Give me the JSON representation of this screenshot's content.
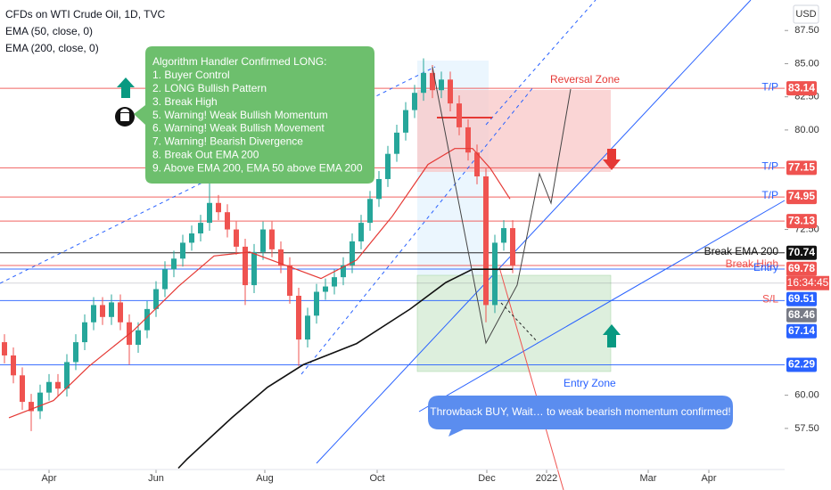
{
  "chart_data": {
    "type": "candlestick",
    "title": "CFDs on WTI Crude Oil, 1D, TVC",
    "indicators": [
      {
        "name": "EMA (50, close, 0)",
        "color": "#e53935",
        "x": [
          0.5,
          5.5,
          9.5,
          14.5,
          19.5,
          23.5,
          27.5,
          31.5,
          35.5,
          39.5,
          43.5,
          47.5,
          50.5,
          52.5,
          54.5,
          56.7
        ],
        "values": [
          58.3,
          59.6,
          62.2,
          64.9,
          68.2,
          70.5,
          70.8,
          69.8,
          68.8,
          70.2,
          73.5,
          77.4,
          78.6,
          78.6,
          77.1,
          74.8
        ]
      },
      {
        "name": "EMA (200, close, 0)",
        "color": "#111111",
        "x": [
          19.5,
          20.5,
          25.5,
          29.5,
          33.5,
          39.5,
          45.5,
          49.5,
          52.5,
          57
        ],
        "values": [
          54.5,
          55.2,
          58.3,
          60.6,
          62.3,
          63.9,
          66.5,
          68.5,
          69.5,
          69.5
        ]
      }
    ],
    "currency": "USD",
    "up_color": "#26a69a",
    "down_color": "#ef5350",
    "open": [
      64.0,
      63.0,
      61.5,
      59.5,
      58.8,
      60.2,
      61.0,
      60.5,
      62.5,
      64.0,
      65.5,
      66.8,
      65.9,
      67.0,
      65.5,
      63.8,
      64.9,
      66.5,
      68.0,
      69.5,
      70.3,
      71.5,
      72.2,
      73.0,
      74.5,
      73.8,
      72.5,
      71.2,
      68.3,
      70.8,
      72.5,
      71.0,
      69.8,
      67.5,
      64.2,
      66.0,
      67.8,
      68.2,
      68.9,
      69.8,
      71.6,
      73.0,
      74.8,
      76.3,
      78.2,
      79.8,
      81.5,
      82.8,
      84.3,
      83.0,
      83.8,
      82.0,
      80.2,
      78.3,
      76.5,
      66.8,
      71.5,
      72.6
    ],
    "high": [
      64.6,
      63.6,
      62.1,
      60.1,
      60.8,
      61.6,
      61.6,
      63.1,
      64.6,
      66.1,
      67.4,
      67.4,
      67.6,
      67.6,
      66.1,
      65.5,
      67.1,
      68.6,
      70.1,
      70.9,
      72.1,
      72.8,
      73.6,
      77.0,
      75.1,
      74.4,
      73.1,
      71.8,
      71.4,
      73.1,
      73.1,
      71.6,
      70.4,
      68.1,
      66.6,
      68.4,
      68.8,
      69.5,
      70.4,
      72.2,
      73.6,
      75.4,
      76.9,
      78.8,
      80.4,
      82.1,
      83.4,
      85.4,
      84.9,
      84.4,
      84.4,
      82.6,
      80.8,
      78.9,
      77.1,
      72.1,
      73.2,
      73.2
    ],
    "low": [
      62.4,
      60.9,
      58.9,
      57.3,
      58.2,
      59.6,
      59.9,
      59.9,
      61.9,
      63.4,
      64.9,
      65.3,
      65.3,
      64.9,
      62.3,
      63.2,
      64.3,
      65.9,
      67.4,
      68.9,
      69.7,
      70.9,
      71.6,
      72.4,
      73.2,
      71.9,
      70.6,
      66.8,
      67.7,
      70.2,
      70.4,
      69.2,
      66.9,
      62.2,
      63.6,
      65.4,
      67.2,
      67.6,
      68.3,
      69.2,
      71.0,
      72.4,
      74.2,
      75.7,
      77.6,
      79.2,
      80.9,
      82.2,
      82.4,
      82.4,
      81.4,
      79.6,
      77.7,
      75.9,
      65.5,
      66.2,
      70.9,
      69.2
    ],
    "close": [
      63.0,
      61.5,
      59.5,
      58.8,
      60.2,
      61.0,
      60.5,
      62.5,
      64.0,
      65.5,
      66.8,
      65.9,
      67.0,
      65.5,
      63.8,
      64.9,
      66.5,
      68.0,
      69.5,
      70.3,
      71.5,
      72.2,
      73.0,
      74.5,
      73.8,
      72.5,
      71.2,
      68.3,
      70.8,
      72.5,
      71.0,
      69.8,
      67.5,
      64.2,
      66.0,
      67.8,
      68.2,
      68.9,
      69.8,
      71.6,
      73.0,
      74.8,
      76.3,
      78.2,
      79.8,
      81.5,
      82.8,
      84.3,
      83.0,
      83.8,
      82.0,
      80.2,
      78.3,
      76.5,
      66.8,
      71.5,
      72.6,
      69.8
    ],
    "xlim": [
      -0.5,
      87.5
    ],
    "xticks": [
      {
        "value": 5,
        "label": "Apr"
      },
      {
        "value": 17,
        "label": "Jun"
      },
      {
        "value": 29.2,
        "label": "Aug"
      },
      {
        "value": 41.8,
        "label": "Oct"
      },
      {
        "value": 54.1,
        "label": "Dec"
      },
      {
        "value": 60.8,
        "label": "2022"
      },
      {
        "value": 72.2,
        "label": "Mar"
      },
      {
        "value": 79,
        "label": "Apr"
      }
    ],
    "ylim": [
      54.4,
      89.8
    ],
    "yticks": [
      {
        "value": 87.5,
        "label": "87.50"
      },
      {
        "value": 85,
        "label": "85.00"
      },
      {
        "value": 82.5,
        "label": "82.50"
      },
      {
        "value": 80,
        "label": "80.00"
      },
      {
        "value": 72.5,
        "label": "72.50"
      },
      {
        "value": 60,
        "label": "60.00"
      },
      {
        "value": 57.5,
        "label": "57.50"
      }
    ],
    "levels": [
      {
        "value": 83.14,
        "color": "#ef5350",
        "text": "T/P",
        "text_color": "#2962ff"
      },
      {
        "value": 77.15,
        "color": "#ef5350",
        "text": "T/P",
        "text_color": "#2962ff"
      },
      {
        "value": 74.95,
        "color": "#ef5350",
        "text": "T/P",
        "text_color": "#2962ff"
      },
      {
        "value": 73.13,
        "color": "#ef5350"
      },
      {
        "value": 70.74,
        "color": "#111111",
        "text": "Break EMA 200",
        "text_color": "#111111"
      },
      {
        "value": 69.78,
        "color": "#ef5350",
        "text": "Break High",
        "text_color": "#ef5350",
        "countdown": "16:34:45"
      },
      {
        "value": 69.51,
        "color": "#2962ff",
        "text": "Entry",
        "text_color": "#2962ff"
      },
      {
        "value": 68.46,
        "color": "#787b86"
      },
      {
        "value": 67.14,
        "color": "#2962ff",
        "text": "S/L",
        "text_color": "#ef5350"
      },
      {
        "value": 62.29,
        "color": "#2962ff"
      }
    ],
    "annotations": {
      "signal_box": [
        "Algorithm Handler Confirmed LONG:",
        "1. Buyer Control",
        "2. LONG Bullish Pattern",
        "3. Break High",
        "5. Warning! Weak Bullish Momentum",
        "6. Warning! Weak Bullish Movement",
        "7. Warning! Bearish Divergence",
        "8. Break Out EMA 200",
        "9. Above EMA 200, EMA 50 above EMA 200"
      ],
      "reversal_zone": "Reversal Zone",
      "entry_zone": "Entry Zone",
      "callout": "Throwback BUY, Wait… to weak bearish momentum confirmed!"
    }
  }
}
